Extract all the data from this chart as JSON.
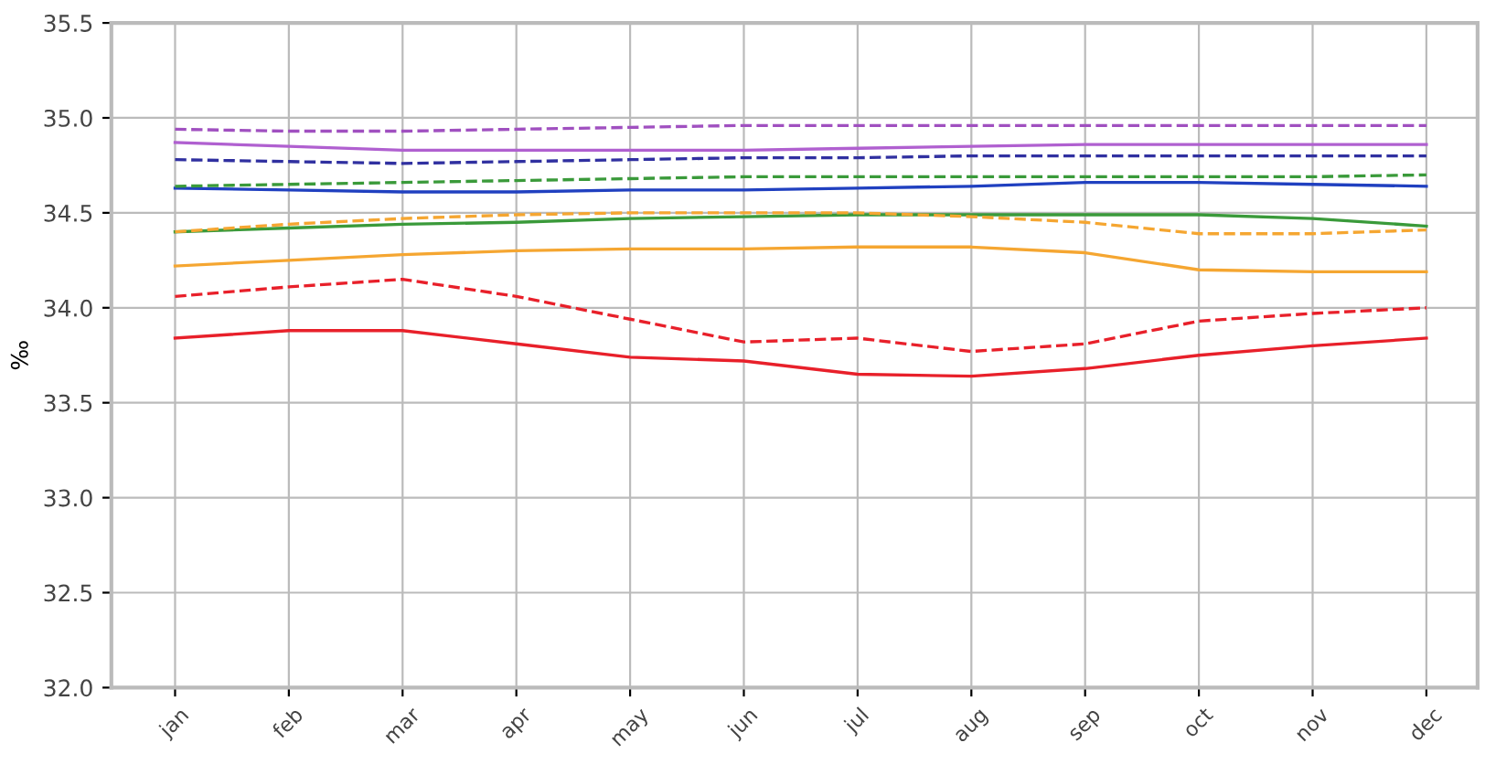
{
  "chart_data": {
    "type": "line",
    "ylabel": "‰",
    "categories": [
      "jan",
      "feb",
      "mar",
      "apr",
      "may",
      "jun",
      "jul",
      "aug",
      "sep",
      "oct",
      "nov",
      "dec"
    ],
    "series": [
      {
        "color": "#e8202a",
        "line_style": "solid",
        "values": [
          33.84,
          33.88,
          33.88,
          33.81,
          33.74,
          33.72,
          33.65,
          33.64,
          33.68,
          33.75,
          33.8,
          33.84
        ]
      },
      {
        "color": "#e8202a",
        "line_style": "dashed",
        "values": [
          34.06,
          34.11,
          34.15,
          34.06,
          33.94,
          33.82,
          33.84,
          33.77,
          33.81,
          33.93,
          33.97,
          34.0
        ]
      },
      {
        "color": "#f5a631",
        "line_style": "solid",
        "values": [
          34.22,
          34.25,
          34.28,
          34.3,
          34.31,
          34.31,
          34.32,
          34.32,
          34.29,
          34.2,
          34.19,
          34.19
        ]
      },
      {
        "color": "#f5a631",
        "line_style": "dashed",
        "values": [
          34.4,
          34.44,
          34.47,
          34.49,
          34.5,
          34.5,
          34.5,
          34.48,
          34.45,
          34.39,
          34.39,
          34.41
        ]
      },
      {
        "color": "#3a9a3a",
        "line_style": "solid",
        "values": [
          34.4,
          34.42,
          34.44,
          34.45,
          34.47,
          34.48,
          34.49,
          34.49,
          34.49,
          34.49,
          34.47,
          34.43
        ]
      },
      {
        "color": "#3a9a3a",
        "line_style": "dashed",
        "values": [
          34.64,
          34.65,
          34.66,
          34.67,
          34.68,
          34.69,
          34.69,
          34.69,
          34.69,
          34.69,
          34.69,
          34.7
        ]
      },
      {
        "color": "#2040c0",
        "line_style": "solid",
        "values": [
          34.63,
          34.62,
          34.61,
          34.61,
          34.62,
          34.62,
          34.63,
          34.64,
          34.66,
          34.66,
          34.65,
          34.64
        ]
      },
      {
        "color": "#3030a0",
        "line_style": "dashed",
        "values": [
          34.78,
          34.77,
          34.76,
          34.77,
          34.78,
          34.79,
          34.79,
          34.8,
          34.8,
          34.8,
          34.8,
          34.8
        ]
      },
      {
        "color": "#b060d0",
        "line_style": "solid",
        "values": [
          34.87,
          34.85,
          34.83,
          34.83,
          34.83,
          34.83,
          34.84,
          34.85,
          34.86,
          34.86,
          34.86,
          34.86
        ]
      },
      {
        "color": "#a050c0",
        "line_style": "dashed",
        "values": [
          34.94,
          34.93,
          34.93,
          34.94,
          34.95,
          34.96,
          34.96,
          34.96,
          34.96,
          34.96,
          34.96,
          34.96
        ]
      }
    ],
    "ylim": [
      32.0,
      35.5
    ],
    "yticks": [
      {
        "value": 32.0,
        "label": "32.0"
      },
      {
        "value": 32.5,
        "label": "32.5"
      },
      {
        "value": 33.0,
        "label": "33.0"
      },
      {
        "value": 33.5,
        "label": "33.5"
      },
      {
        "value": 34.0,
        "label": "34.0"
      },
      {
        "value": 34.5,
        "label": "34.5"
      },
      {
        "value": 35.0,
        "label": "35.0"
      },
      {
        "value": 35.5,
        "label": "35.5"
      }
    ],
    "grid": true,
    "marker": "none"
  }
}
